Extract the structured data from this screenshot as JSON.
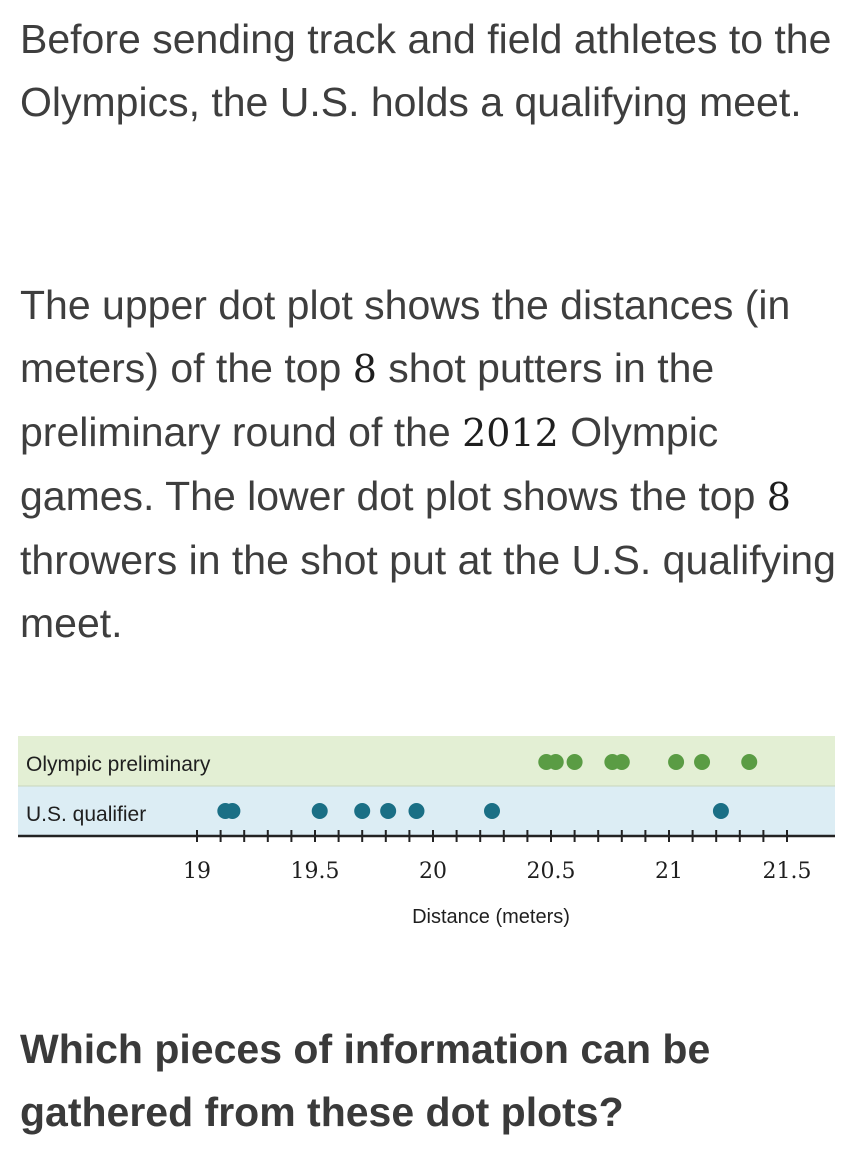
{
  "intro": {
    "text": "Before sending track and field athletes to the Olympics, the U.S. holds a qualifying meet."
  },
  "description": {
    "part1": "The upper dot plot shows the distances (in meters) of the top ",
    "n1": "8",
    "part2": " shot putters in the preliminary round of the ",
    "year": "2012",
    "part3": " Olympic games. The lower dot plot shows the top ",
    "n2": "8",
    "part4": " throwers in the shot put at the U.S. qualifying meet."
  },
  "question": {
    "text": "Which pieces of information can be gathered from these dot plots?"
  },
  "colors": {
    "olympic_band": "#e3efd4",
    "us_band": "#dcedf4",
    "olympic_dot": "#5a9c44",
    "us_dot": "#1a6f85",
    "axis": "#222222"
  },
  "chart_data": {
    "type": "scatter",
    "xlabel": "Distance (meters)",
    "xlim": [
      18.95,
      21.55
    ],
    "ticks": [
      19,
      19.5,
      20,
      20.5,
      21,
      21.5
    ],
    "tick_labels": [
      "19",
      "19.5",
      "20",
      "20.5",
      "21",
      "21.5"
    ],
    "minor_tick_step": 0.1,
    "grid": false,
    "series": [
      {
        "name": "Olympic preliminary",
        "values": [
          20.48,
          20.52,
          20.6,
          20.76,
          20.8,
          21.03,
          21.14,
          21.34
        ]
      },
      {
        "name": "U.S. qualifier",
        "values": [
          19.12,
          19.15,
          19.52,
          19.7,
          19.81,
          19.93,
          20.25,
          21.22
        ]
      }
    ]
  }
}
